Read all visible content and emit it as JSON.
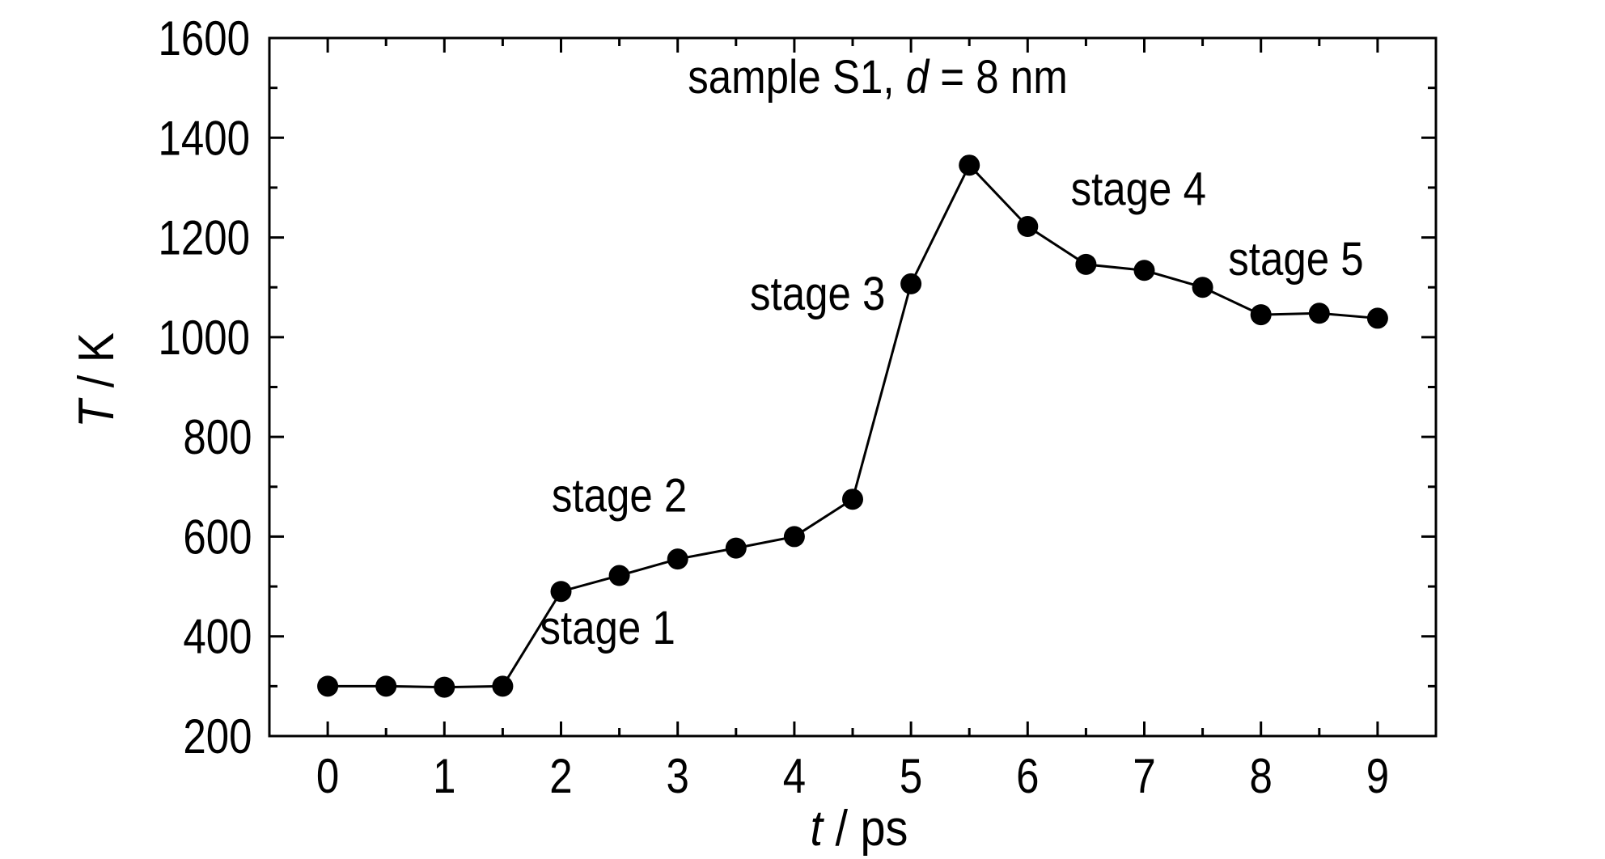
{
  "chart_data": {
    "type": "line",
    "title": "",
    "xlabel": {
      "italic": "t",
      "rest": " / ps"
    },
    "ylabel": {
      "italic": "T",
      "rest": " / K"
    },
    "xlim": [
      -0.5,
      9.5
    ],
    "ylim": [
      200,
      1600
    ],
    "x_ticks": [
      "0",
      "1",
      "2",
      "3",
      "4",
      "5",
      "6",
      "7",
      "8",
      "9"
    ],
    "y_ticks": [
      "200",
      "400",
      "600",
      "800",
      "1000",
      "1200",
      "1400",
      "1600"
    ],
    "grid": false,
    "legend": "none",
    "series": [
      {
        "x": [
          0,
          0.5,
          1,
          1.5,
          2,
          2.5,
          3,
          3.5,
          4,
          4.5,
          5,
          5.5,
          6,
          6.5,
          7,
          7.5,
          8,
          8.5,
          9
        ],
        "y": [
          300,
          300,
          298,
          300,
          490,
          522,
          555,
          577,
          600,
          675,
          1107,
          1345,
          1222,
          1146,
          1134,
          1100,
          1045,
          1048,
          1038
        ]
      }
    ],
    "sample_label": {
      "pre": "sample S1, ",
      "italic": "d",
      "post": " = 8 nm"
    },
    "annotations": [
      {
        "text": "stage 1",
        "x": 2.4,
        "y": 385
      },
      {
        "text": "stage 2",
        "x": 2.5,
        "y": 650
      },
      {
        "text": "stage 3",
        "x": 4.2,
        "y": 1055
      },
      {
        "text": "stage 4",
        "x": 6.95,
        "y": 1265
      },
      {
        "text": "stage 5",
        "x": 8.3,
        "y": 1125
      }
    ],
    "colors": {
      "line": "#000000",
      "marker": "#000000",
      "axis": "#000000"
    }
  }
}
